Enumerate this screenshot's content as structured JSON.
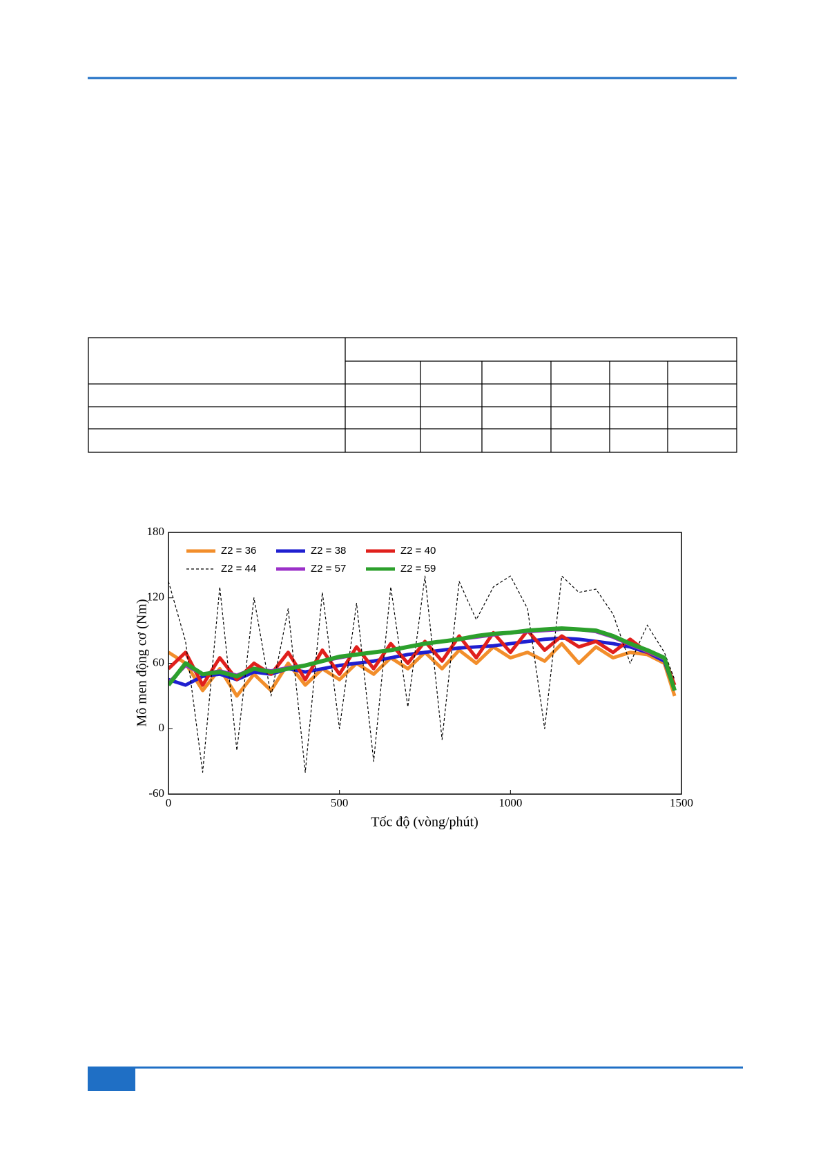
{
  "chart_data": {
    "type": "line",
    "xlabel": "Tốc độ (vòng/phút)",
    "ylabel": "Mô men động cơ (Nm)",
    "x": [
      0,
      50,
      100,
      150,
      200,
      250,
      300,
      350,
      400,
      450,
      500,
      550,
      600,
      650,
      700,
      750,
      800,
      850,
      900,
      950,
      1000,
      1050,
      1100,
      1150,
      1200,
      1250,
      1300,
      1350,
      1400,
      1450,
      1480
    ],
    "series": [
      {
        "name": "Z2 = 36",
        "color": "#f28e2b",
        "width": 5,
        "dashed": false,
        "values": [
          70,
          60,
          35,
          55,
          30,
          50,
          35,
          60,
          40,
          55,
          45,
          60,
          50,
          65,
          55,
          70,
          55,
          72,
          60,
          75,
          65,
          70,
          62,
          78,
          60,
          75,
          65,
          70,
          68,
          60,
          30
        ]
      },
      {
        "name": "Z2 = 38",
        "color": "#1f1fd0",
        "width": 5,
        "dashed": false,
        "values": [
          45,
          40,
          48,
          50,
          45,
          52,
          50,
          55,
          52,
          55,
          58,
          60,
          62,
          65,
          68,
          70,
          72,
          74,
          75,
          76,
          78,
          80,
          82,
          83,
          82,
          80,
          78,
          75,
          70,
          62,
          35
        ]
      },
      {
        "name": "Z2 = 40",
        "color": "#e0201c",
        "width": 5,
        "dashed": false,
        "values": [
          55,
          70,
          40,
          65,
          45,
          60,
          50,
          70,
          45,
          72,
          50,
          75,
          55,
          78,
          60,
          80,
          62,
          85,
          65,
          88,
          70,
          90,
          72,
          85,
          75,
          80,
          70,
          82,
          70,
          65,
          40
        ]
      },
      {
        "name": "Z2 = 44",
        "color": "#000000",
        "width": 1.2,
        "dashed": true,
        "values": [
          135,
          80,
          -40,
          130,
          -20,
          120,
          30,
          110,
          -40,
          125,
          0,
          115,
          -30,
          130,
          20,
          140,
          -10,
          135,
          100,
          130,
          140,
          110,
          0,
          140,
          125,
          128,
          105,
          60,
          95,
          70,
          45
        ]
      },
      {
        "name": "Z2 = 57",
        "color": "#9b30c8",
        "width": 5,
        "dashed": false,
        "values": [
          42,
          58,
          50,
          53,
          49,
          55,
          53,
          56,
          58,
          62,
          65,
          68,
          70,
          72,
          75,
          78,
          80,
          82,
          84,
          86,
          88,
          89,
          90,
          91,
          91,
          89,
          84,
          77,
          71,
          64,
          35
        ]
      },
      {
        "name": "Z2 = 59",
        "color": "#2ca02c",
        "width": 6,
        "dashed": false,
        "values": [
          40,
          60,
          50,
          52,
          48,
          55,
          52,
          55,
          58,
          62,
          66,
          68,
          70,
          72,
          75,
          78,
          80,
          82,
          85,
          87,
          88,
          90,
          91,
          92,
          91,
          90,
          85,
          78,
          72,
          65,
          35
        ]
      }
    ],
    "xlim": [
      0,
      1500
    ],
    "xticks": [
      0,
      500,
      1000,
      1500
    ],
    "ylim": [
      -60,
      180
    ],
    "yticks": [
      -60,
      0,
      60,
      120,
      180
    ]
  }
}
